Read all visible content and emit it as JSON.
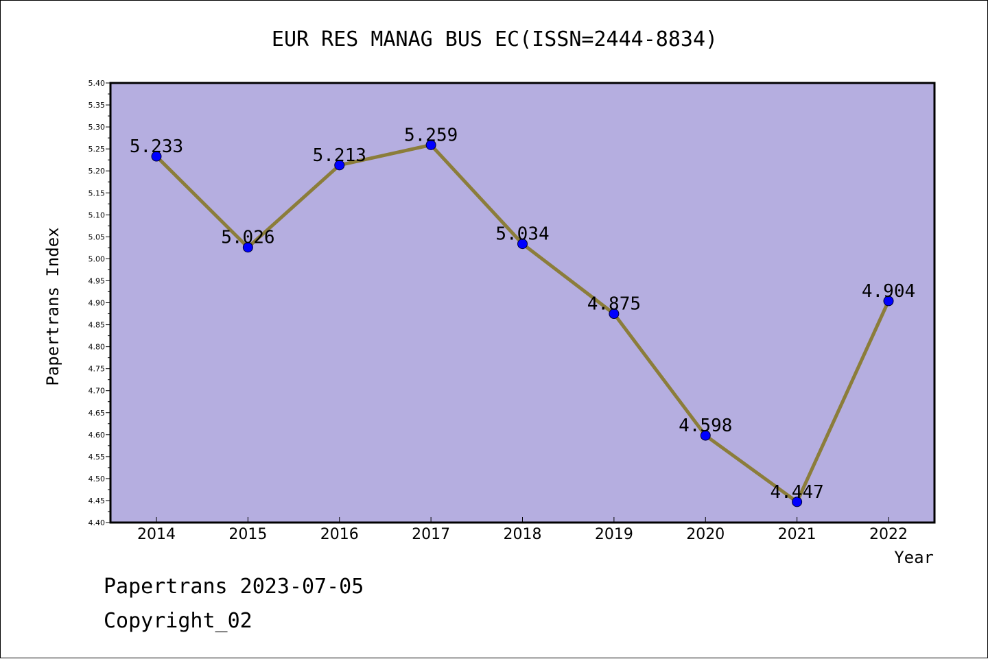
{
  "chart_data": {
    "type": "line",
    "title": "EUR RES MANAG BUS EC(ISSN=2444-8834)",
    "xlabel": "Year",
    "ylabel": "Papertrans Index",
    "categories": [
      "2014",
      "2015",
      "2016",
      "2017",
      "2018",
      "2019",
      "2020",
      "2021",
      "2022"
    ],
    "values": [
      5.233,
      5.026,
      5.213,
      5.259,
      5.034,
      4.875,
      4.598,
      4.447,
      4.904
    ],
    "data_labels": [
      "5.233",
      "5.026",
      "5.213",
      "5.259",
      "5.034",
      "4.875",
      "4.598",
      "4.447",
      "4.904"
    ],
    "ylim": [
      4.4,
      5.4
    ],
    "ytick_step": 0.05,
    "ytick_labels": [
      "4.40",
      "4.45",
      "4.50",
      "4.55",
      "4.60",
      "4.65",
      "4.70",
      "4.75",
      "4.80",
      "4.85",
      "4.90",
      "4.95",
      "5.00",
      "5.05",
      "5.10",
      "5.15",
      "5.20",
      "5.25",
      "5.30",
      "5.35",
      "5.40"
    ],
    "grid": false,
    "legend": "none",
    "colors": {
      "plot_background": "#b5aee0",
      "line": "#8b7d3a",
      "marker": "#0000ff",
      "axes": "#000000"
    }
  },
  "footer": {
    "date_line": "Papertrans 2023-07-05",
    "copyright_line": "Copyright_02"
  }
}
